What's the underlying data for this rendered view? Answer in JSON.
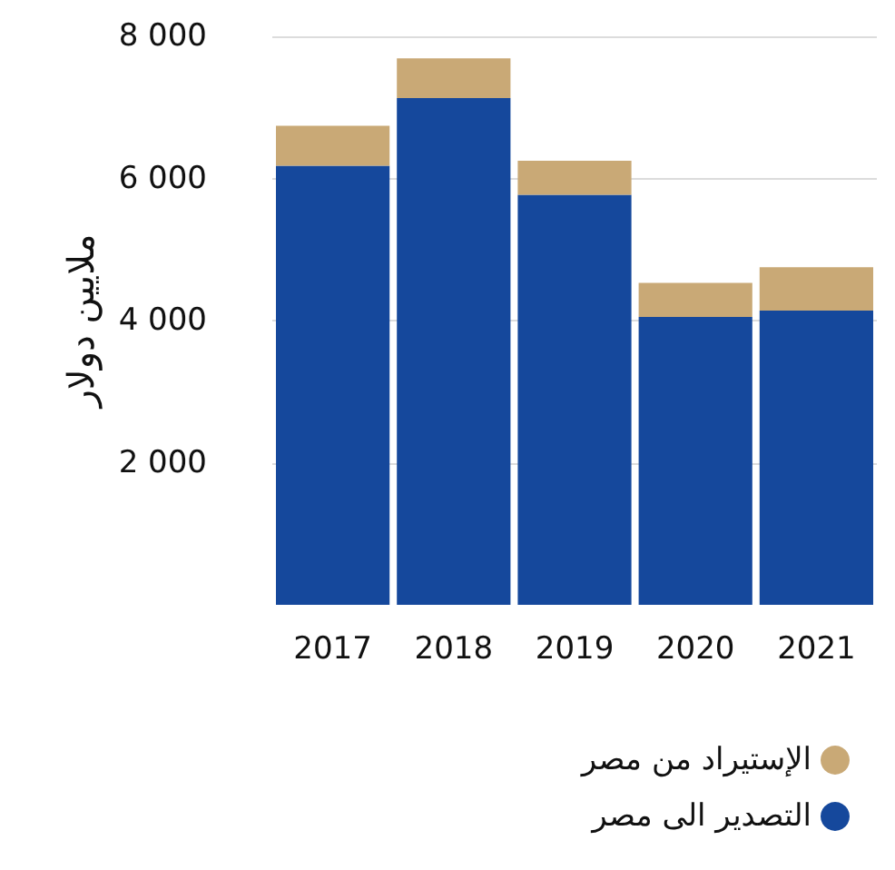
{
  "chart_data": {
    "type": "bar",
    "ylabel": "ملايين دولار",
    "categories": [
      "2017",
      "2018",
      "2019",
      "2020",
      "2021"
    ],
    "stacked": true,
    "series": [
      {
        "name": "التصدير الى مصر",
        "color": "#15489c",
        "values": [
          6180,
          7130,
          5770,
          4050,
          4140
        ]
      },
      {
        "name": "الإستيراد من مصر",
        "color": "#c9a976",
        "values": [
          560,
          560,
          480,
          480,
          610
        ]
      }
    ],
    "ylim": [
      0,
      8000
    ],
    "yticks": [
      {
        "value": 2000,
        "label": "2 000"
      },
      {
        "value": 4000,
        "label": "4 000"
      },
      {
        "value": 6000,
        "label": "6 000"
      },
      {
        "value": 8000,
        "label": "8 000"
      }
    ],
    "grid": "y",
    "legend": "bottom right"
  }
}
